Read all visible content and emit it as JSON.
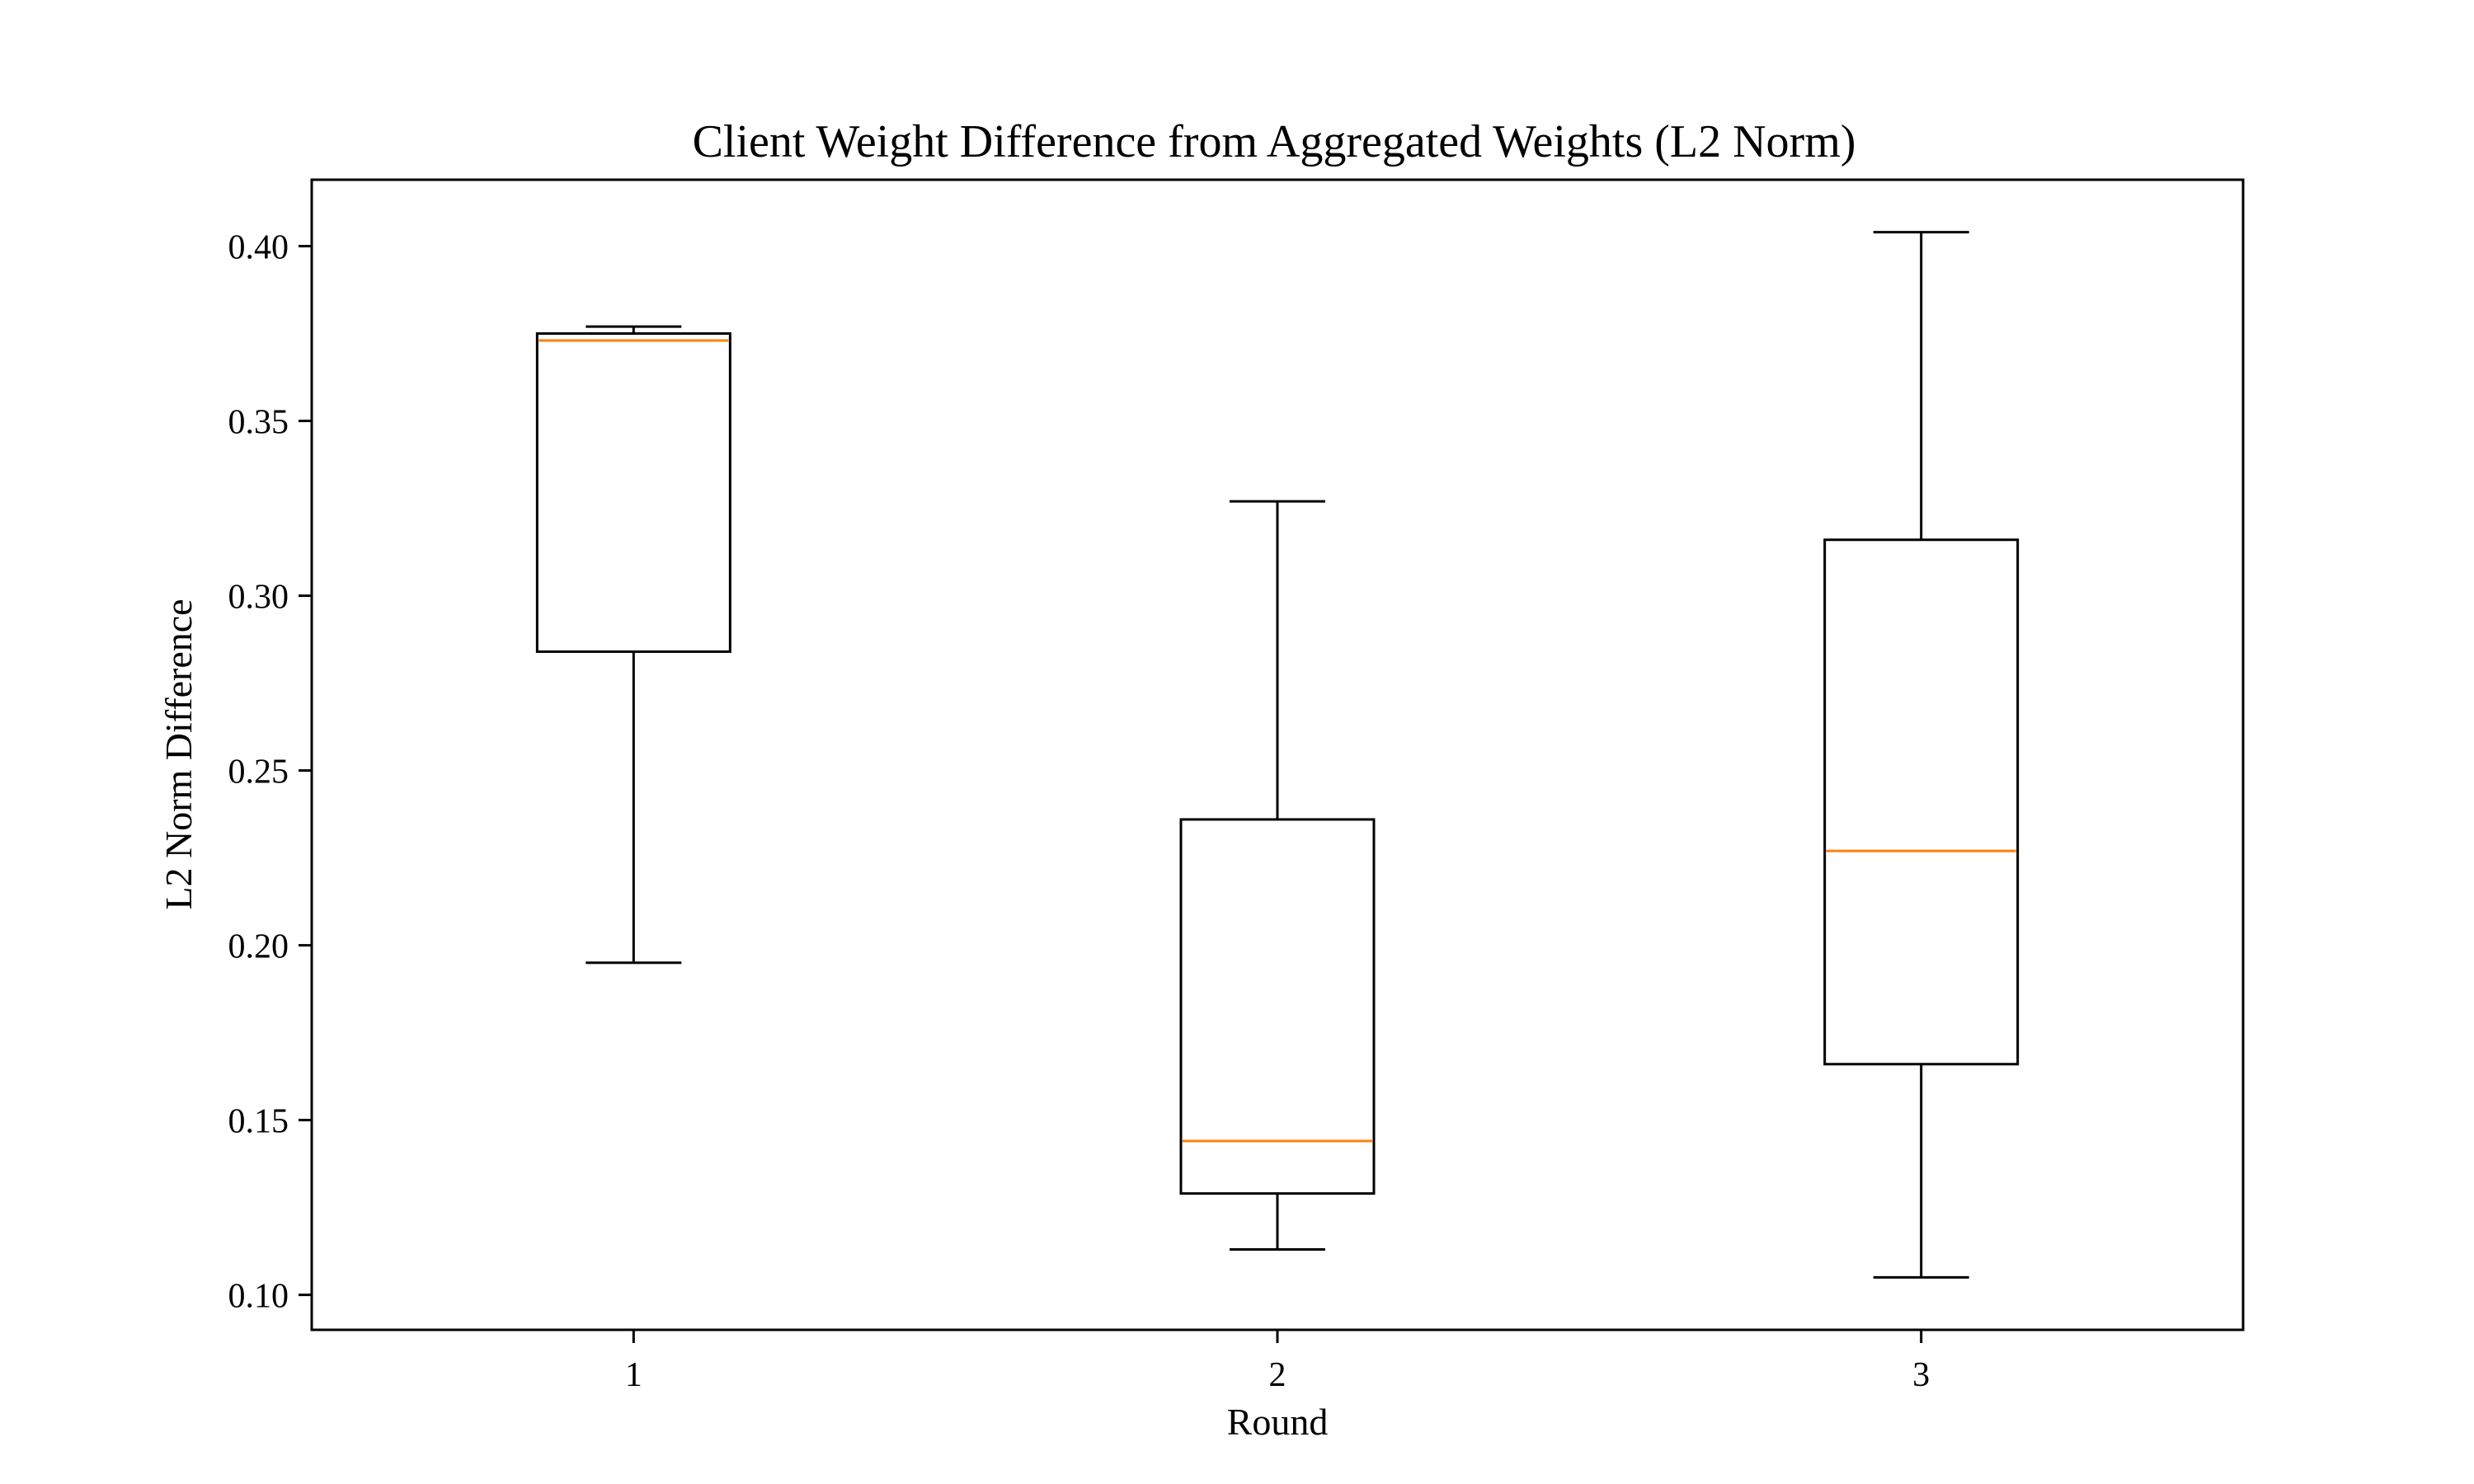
{
  "chart_data": {
    "type": "box",
    "title": "Client Weight Difference from Aggregated Weights (L2 Norm)",
    "xlabel": "Round",
    "ylabel": "L2 Norm Difference",
    "categories": [
      "1",
      "2",
      "3"
    ],
    "ylim": [
      0.09,
      0.419
    ],
    "yticks": [
      0.1,
      0.15,
      0.2,
      0.25,
      0.3,
      0.35,
      0.4
    ],
    "ytick_labels": [
      "0.10",
      "0.15",
      "0.20",
      "0.25",
      "0.30",
      "0.35",
      "0.40"
    ],
    "xlim": [
      0.5,
      3.5
    ],
    "grid": false,
    "boxes": [
      {
        "category": "1",
        "whisker_low": 0.195,
        "q1": 0.284,
        "median": 0.373,
        "q3": 0.375,
        "whisker_high": 0.377
      },
      {
        "category": "2",
        "whisker_low": 0.113,
        "q1": 0.129,
        "median": 0.144,
        "q3": 0.236,
        "whisker_high": 0.327
      },
      {
        "category": "3",
        "whisker_low": 0.105,
        "q1": 0.166,
        "median": 0.227,
        "q3": 0.316,
        "whisker_high": 0.404
      }
    ],
    "colors": {
      "box": "#000000",
      "median": "#ff7f0e",
      "axes": "#000000"
    }
  }
}
